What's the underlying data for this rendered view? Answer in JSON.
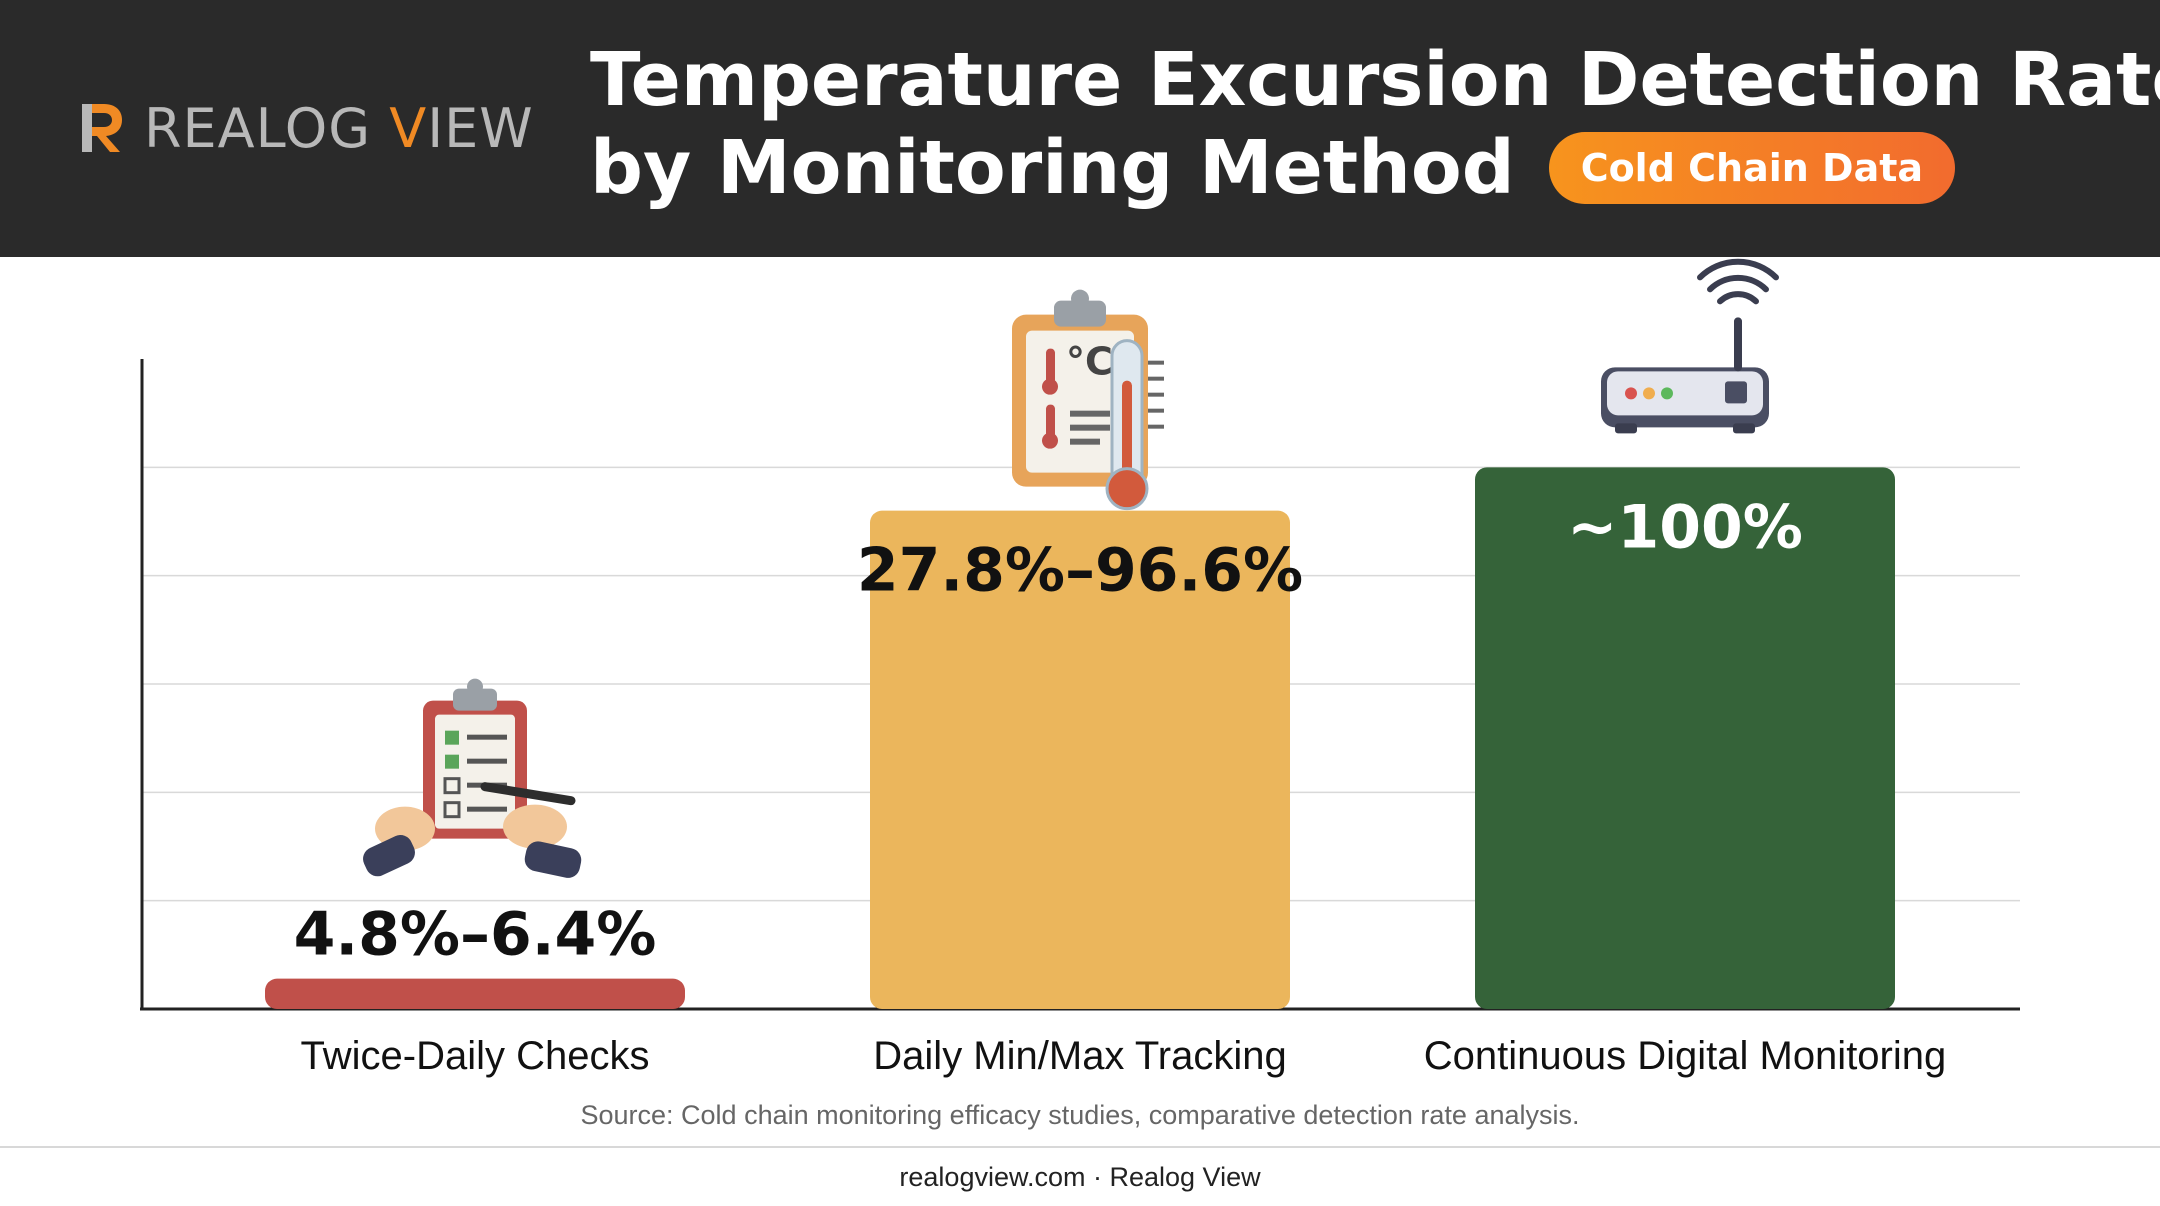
{
  "brand": {
    "name_main": "REALOG ",
    "name_accent": "V",
    "name_rest": "IEW"
  },
  "title": {
    "line1": "Temperature Excursion Detection Rates",
    "line2": "by Monitoring Method"
  },
  "badge": {
    "label": "Cold Chain Data"
  },
  "colors": {
    "twice_daily": "#c0504a",
    "min_max": "#ebb65c",
    "continuous": "#356339",
    "accent": "#f08a24",
    "header_bg": "#2a2a2a"
  },
  "chart_data": {
    "type": "bar",
    "title": "Temperature Excursion Detection Rates by Monitoring Method",
    "xlabel": "",
    "ylabel": "",
    "ylim": [
      0,
      120
    ],
    "grid": true,
    "categories": [
      "Twice-Daily Checks",
      "Daily Min/Max Tracking",
      "Continuous Digital Monitoring"
    ],
    "values": [
      5.6,
      92,
      100
    ],
    "value_labels": [
      "4.8%–6.4%",
      "27.8%–96.6%",
      "~100%"
    ],
    "icons": [
      "clipboard-checklist-icon",
      "clipboard-thermometer-icon",
      "wifi-router-icon"
    ]
  },
  "source": "Source: Cold chain monitoring efficacy studies, comparative detection rate analysis.",
  "footer": "realogview.com · Realog View"
}
